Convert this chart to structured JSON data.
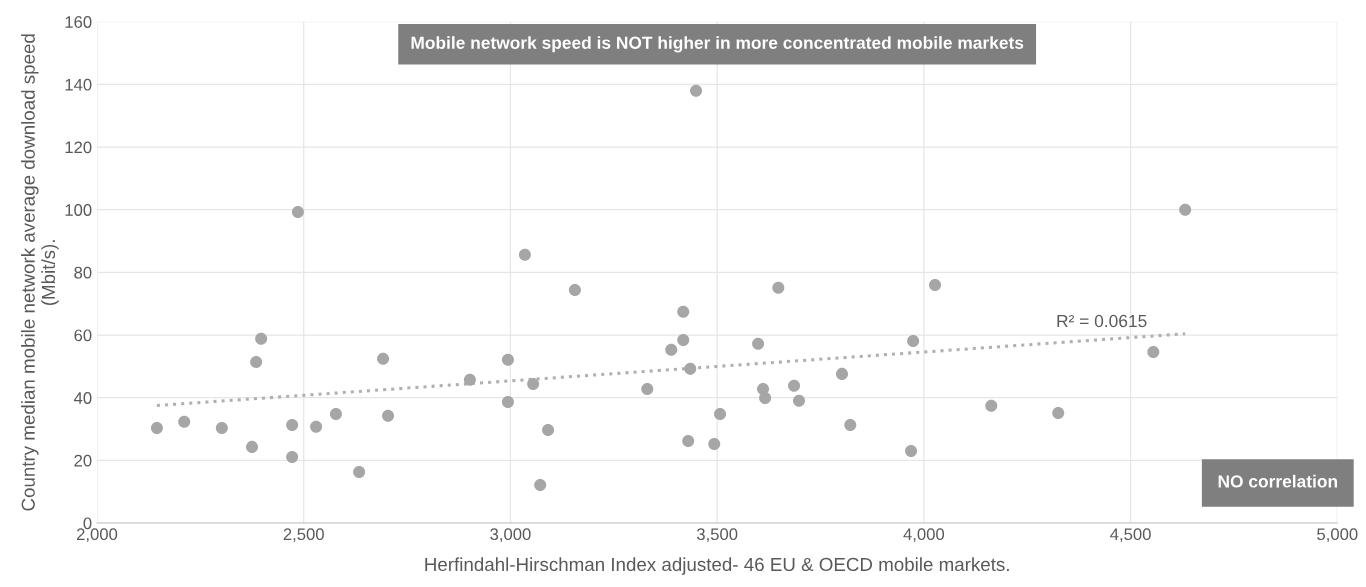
{
  "chart_data": {
    "type": "scatter",
    "title": "Mobile network speed is NOT higher in more concentrated mobile markets",
    "xlabel": "Herfindahl-Hirschman Index adjusted- 46 EU & OECD mobile markets.",
    "ylabel": "Country median mobile network average download speed (Mbit/s).",
    "annotations": [
      "NO correlation",
      "R² = 0.0615"
    ],
    "xlim": [
      2000,
      5000
    ],
    "xticks": [
      {
        "value": 2000,
        "label": "2,000"
      },
      {
        "value": 2500,
        "label": "2,500"
      },
      {
        "value": 3000,
        "label": "3,000"
      },
      {
        "value": 3500,
        "label": "3,500"
      },
      {
        "value": 4000,
        "label": "4,000"
      },
      {
        "value": 4500,
        "label": "4,500"
      },
      {
        "value": 5000,
        "label": "5,000"
      }
    ],
    "ylim": [
      0,
      160
    ],
    "yticks": [
      0,
      20,
      40,
      60,
      80,
      100,
      120,
      140,
      160
    ],
    "grid": true,
    "marker": "circle",
    "series": [
      {
        "color": "#a6a6a6",
        "x": [
          2145,
          2211,
          2302,
          2375,
          2385,
          2397,
          2472,
          2472,
          2486,
          2530,
          2578,
          2634,
          2692,
          2704,
          2902,
          2994,
          2994,
          3035,
          3055,
          3072,
          3091,
          3156,
          3331,
          3389,
          3418,
          3418,
          3430,
          3435,
          3449,
          3493,
          3507,
          3599,
          3611,
          3616,
          3648,
          3686,
          3698,
          3802,
          3822,
          3969,
          3974,
          4027,
          4163,
          4325,
          4555,
          4632
        ],
        "values": [
          30.3,
          32.3,
          30.3,
          24.3,
          51.4,
          58.8,
          31.3,
          21.1,
          99.3,
          30.7,
          34.8,
          16.3,
          52.4,
          34.2,
          45.7,
          52.1,
          38.6,
          85.6,
          44.4,
          12.1,
          29.7,
          74.4,
          42.8,
          55.3,
          67.4,
          58.4,
          26.2,
          49.2,
          138,
          25.2,
          34.8,
          57.2,
          42.8,
          39.9,
          75.1,
          43.8,
          39.0,
          47.6,
          31.3,
          23.0,
          58.1,
          76.0,
          37.4,
          35.1,
          54.6,
          100
        ]
      },
      {
        "type": "line",
        "marker": "none",
        "color": "#b0b0b0",
        "line_style": "dotted",
        "x": [
          2145,
          4632
        ],
        "values": [
          37.5,
          60.4
        ]
      }
    ]
  }
}
